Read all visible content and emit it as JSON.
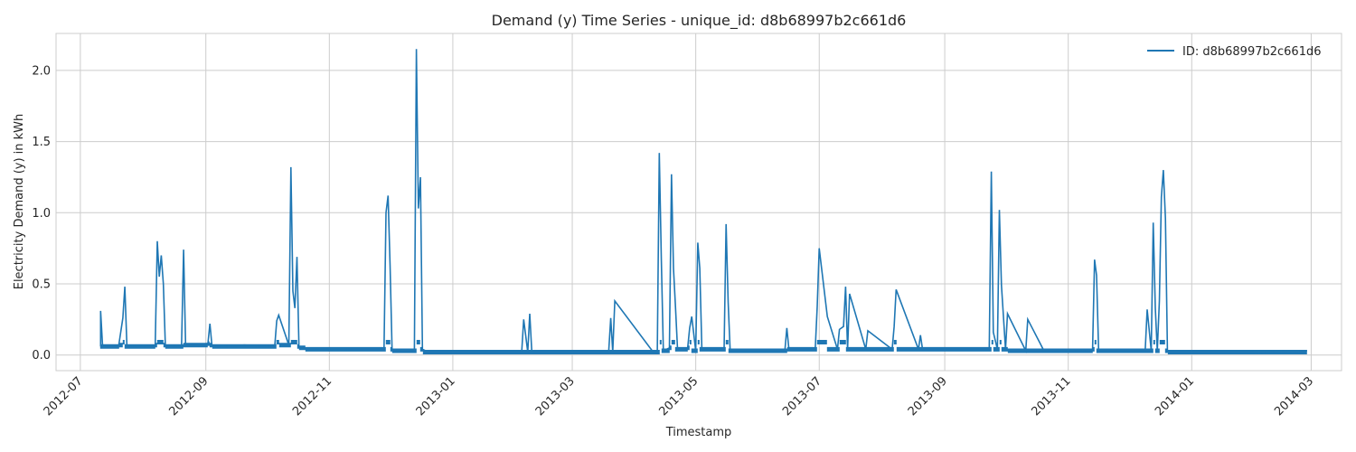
{
  "chart_data": {
    "type": "line",
    "title": "Demand (y) Time Series - unique_id: d8b68997b2c661d6",
    "xlabel": "Timestamp",
    "ylabel": "Electricity Demand (y) in kWh",
    "x_tick_labels": [
      "2012-07",
      "2012-09",
      "2012-11",
      "2013-01",
      "2013-03",
      "2013-05",
      "2013-07",
      "2013-09",
      "2013-11",
      "2014-01",
      "2014-03"
    ],
    "y_tick_labels": [
      "0.0",
      "0.5",
      "1.0",
      "1.5",
      "2.0"
    ],
    "y_ticks": [
      0.0,
      0.5,
      1.0,
      1.5,
      2.0
    ],
    "xlim": [
      "2012-06-19",
      "2014-03-16"
    ],
    "ylim": [
      -0.11,
      2.26
    ],
    "grid": true,
    "legend_position": "top-right",
    "colors": {
      "series": "#1f77b4",
      "grid": "#cccccc",
      "axes_edge": "#cccccc",
      "text": "#262626"
    },
    "series": [
      {
        "name": "ID: d8b68997b2c661d6",
        "x": [
          "2012-07-11",
          "2012-07-11",
          "2012-07-12",
          "2012-07-20",
          "2012-07-22",
          "2012-07-23",
          "2012-07-24",
          "2012-08-07",
          "2012-08-08",
          "2012-08-09",
          "2012-08-10",
          "2012-08-11",
          "2012-08-12",
          "2012-08-20",
          "2012-08-21",
          "2012-08-22",
          "2012-09-02",
          "2012-09-03",
          "2012-09-04",
          "2012-09-10",
          "2012-09-20",
          "2012-10-05",
          "2012-10-06",
          "2012-10-07",
          "2012-10-12",
          "2012-10-13",
          "2012-10-14",
          "2012-10-15",
          "2012-10-16",
          "2012-10-17",
          "2012-10-20",
          "2012-11-10",
          "2012-11-28",
          "2012-11-29",
          "2012-11-30",
          "2012-12-01",
          "2012-12-02",
          "2012-12-10",
          "2012-12-13",
          "2012-12-14",
          "2012-12-15",
          "2012-12-16",
          "2012-12-17",
          "2012-12-20",
          "2013-01-15",
          "2013-02-04",
          "2013-02-05",
          "2013-02-07",
          "2013-02-08",
          "2013-02-09",
          "2013-02-10",
          "2013-02-20",
          "2013-03-19",
          "2013-03-20",
          "2013-03-21",
          "2013-03-22",
          "2013-04-10",
          "2013-04-12",
          "2013-04-13",
          "2013-04-14",
          "2013-04-15",
          "2013-04-18",
          "2013-04-19",
          "2013-04-20",
          "2013-04-21",
          "2013-04-22",
          "2013-04-27",
          "2013-04-28",
          "2013-04-29",
          "2013-05-01",
          "2013-05-02",
          "2013-05-03",
          "2013-05-04",
          "2013-05-15",
          "2013-05-16",
          "2013-05-17",
          "2013-05-18",
          "2013-06-10",
          "2013-06-14",
          "2013-06-15",
          "2013-06-16",
          "2013-06-29",
          "2013-06-30",
          "2013-07-01",
          "2013-07-05",
          "2013-07-10",
          "2013-07-11",
          "2013-07-13",
          "2013-07-14",
          "2013-07-15",
          "2013-07-16",
          "2013-07-24",
          "2013-07-25",
          "2013-08-06",
          "2013-08-07",
          "2013-08-08",
          "2013-08-19",
          "2013-08-20",
          "2013-08-21",
          "2013-09-10",
          "2013-09-23",
          "2013-09-24",
          "2013-09-25",
          "2013-09-27",
          "2013-09-28",
          "2013-09-29",
          "2013-10-01",
          "2013-10-02",
          "2013-10-11",
          "2013-10-12",
          "2013-10-20",
          "2013-11-13",
          "2013-11-14",
          "2013-11-15",
          "2013-11-16",
          "2013-12-01",
          "2013-12-09",
          "2013-12-10",
          "2013-12-12",
          "2013-12-13",
          "2013-12-14",
          "2013-12-15",
          "2013-12-16",
          "2013-12-17",
          "2013-12-18",
          "2013-12-19",
          "2013-12-20",
          "2013-12-21",
          "2014-01-10",
          "2014-02-01",
          "2014-02-27"
        ],
        "y": [
          0.06,
          0.31,
          0.06,
          0.07,
          0.26,
          0.48,
          0.06,
          0.07,
          0.8,
          0.55,
          0.7,
          0.5,
          0.07,
          0.06,
          0.74,
          0.07,
          0.08,
          0.22,
          0.07,
          0.06,
          0.07,
          0.06,
          0.24,
          0.28,
          0.07,
          1.32,
          0.45,
          0.33,
          0.69,
          0.06,
          0.05,
          0.04,
          0.04,
          1.0,
          1.12,
          0.63,
          0.04,
          0.03,
          0.03,
          2.15,
          1.03,
          1.25,
          0.04,
          0.02,
          0.02,
          0.02,
          0.25,
          0.02,
          0.29,
          0.02,
          0.02,
          0.02,
          0.02,
          0.26,
          0.02,
          0.38,
          0.02,
          0.02,
          1.42,
          0.66,
          0.03,
          0.05,
          1.27,
          0.61,
          0.34,
          0.04,
          0.05,
          0.19,
          0.27,
          0.03,
          0.79,
          0.61,
          0.04,
          0.04,
          0.92,
          0.37,
          0.03,
          0.03,
          0.03,
          0.19,
          0.04,
          0.04,
          0.34,
          0.75,
          0.27,
          0.04,
          0.18,
          0.2,
          0.48,
          0.04,
          0.43,
          0.04,
          0.17,
          0.04,
          0.2,
          0.46,
          0.04,
          0.14,
          0.04,
          0.04,
          0.04,
          1.29,
          0.16,
          0.04,
          1.02,
          0.49,
          0.04,
          0.29,
          0.03,
          0.25,
          0.03,
          0.04,
          0.67,
          0.56,
          0.03,
          0.03,
          0.03,
          0.32,
          0.03,
          0.93,
          0.33,
          0.03,
          0.38,
          1.11,
          1.3,
          0.96,
          0.03,
          0.02,
          0.02,
          0.02,
          0.03
        ]
      }
    ]
  }
}
